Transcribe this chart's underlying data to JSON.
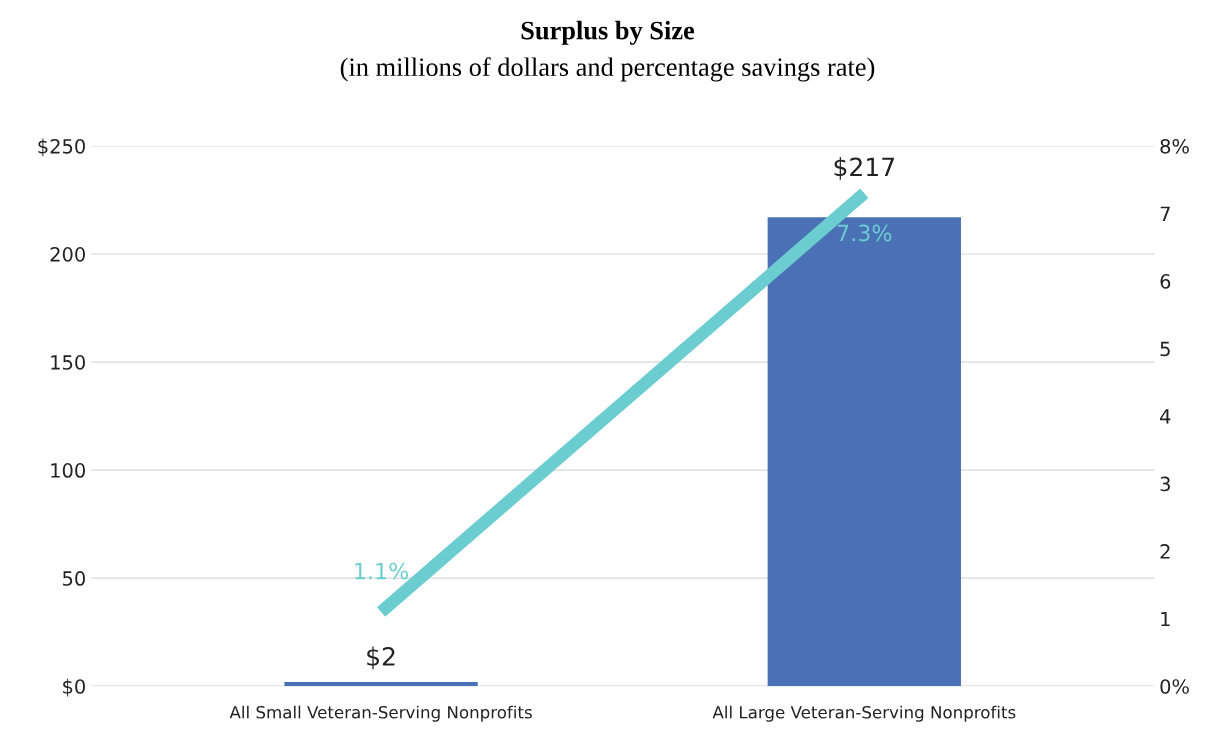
{
  "chart_data": {
    "type": "bar",
    "title": "Surplus by Size",
    "subtitle": "(in millions of dollars and percentage savings rate)",
    "categories": [
      "All Small Veteran-Serving Nonprofits",
      "All Large Veteran-Serving Nonprofits"
    ],
    "series": [
      {
        "color": "#4a70b5",
        "values": [
          2,
          217
        ],
        "value_labels": [
          "$2",
          "$217"
        ]
      },
      {
        "type": "line",
        "axis": "y2",
        "color": "#6ccdd1",
        "values": [
          1.1,
          7.3
        ],
        "value_labels": [
          "1.1%",
          "7.3%"
        ]
      }
    ],
    "ylim": [
      0,
      250
    ],
    "yticks": [
      {
        "value": 0,
        "label": "$0"
      },
      50,
      100,
      150,
      200,
      {
        "value": 250,
        "label": "$250"
      }
    ],
    "y2lim": [
      0,
      8
    ],
    "y2ticks": [
      {
        "value": 0,
        "label": "0%"
      },
      1,
      2,
      3,
      4,
      5,
      6,
      7,
      {
        "value": 8,
        "label": "8%"
      }
    ],
    "grid": "y"
  }
}
